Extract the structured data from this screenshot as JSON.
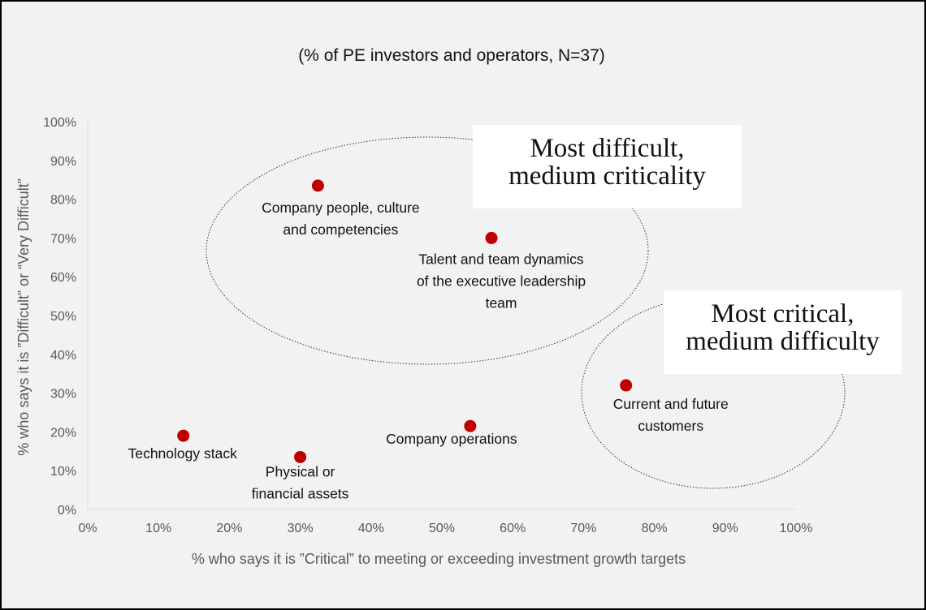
{
  "chart_data": {
    "type": "scatter",
    "subtitle": "(% of PE investors and operators, N=37)",
    "xlabel": "% who says it is ”Critical” to meeting or exceeding investment growth targets",
    "ylabel": "% who says it is ”Difficult” or “Very Difficult”",
    "xlim": [
      0,
      100
    ],
    "ylim": [
      0,
      100
    ],
    "x_ticks": [
      "0%",
      "10%",
      "20%",
      "30%",
      "40%",
      "50%",
      "60%",
      "70%",
      "80%",
      "90%",
      "100%"
    ],
    "y_ticks": [
      "0%",
      "10%",
      "20%",
      "30%",
      "40%",
      "50%",
      "60%",
      "70%",
      "80%",
      "90%",
      "100%"
    ],
    "grid": false,
    "marker_color": "#c00000",
    "points": [
      {
        "label": "Company people, culture and competencies",
        "label_lines": [
          "Company people, culture",
          "and competencies"
        ],
        "x": 32.5,
        "y": 83.5
      },
      {
        "label": "Talent and team dynamics of the executive leadership team",
        "label_lines": [
          "Talent and team dynamics",
          "of the executive leadership",
          "team"
        ],
        "x": 57,
        "y": 70
      },
      {
        "label": "Current and future customers",
        "label_lines": [
          "Current and future",
          "customers"
        ],
        "x": 76,
        "y": 32
      },
      {
        "label": "Company operations",
        "label_lines": [
          "Company operations"
        ],
        "x": 54,
        "y": 21.5
      },
      {
        "label": "Technology stack",
        "label_lines": [
          "Technology stack"
        ],
        "x": 13.5,
        "y": 19
      },
      {
        "label": "Physical or financial assets",
        "label_lines": [
          "Physical or",
          "financial assets"
        ],
        "x": 30,
        "y": 13.5
      }
    ],
    "annotations": [
      {
        "text": "Most difficult, medium criticality",
        "lines": [
          "Most difficult,",
          "medium criticality"
        ]
      },
      {
        "text": "Most critical, medium difficulty",
        "lines": [
          "Most critical,",
          "medium difficulty"
        ]
      }
    ]
  }
}
